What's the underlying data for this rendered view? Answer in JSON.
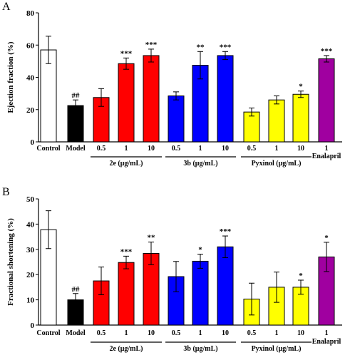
{
  "colors": {
    "Control": "#ffffff",
    "Model": "#000000",
    "2e": "#ff0000",
    "3b": "#0000ff",
    "Pyxinol": "#ffff00",
    "Enalapril": "#a000a0"
  },
  "chart_data": [
    {
      "type": "bar",
      "panel": "A",
      "ylabel": "Ejection fraction (%)",
      "ylim": [
        0,
        80
      ],
      "yticks": [
        "0",
        "20",
        "40",
        "60",
        "80"
      ],
      "categories": [
        "Control",
        "Model",
        "0.5",
        "1",
        "10",
        "0.5",
        "1",
        "10",
        "0.5",
        "1",
        "10",
        "1"
      ],
      "group_of": [
        "Control",
        "Model",
        "2e",
        "2e",
        "2e",
        "3b",
        "3b",
        "3b",
        "Pyxinol",
        "Pyxinol",
        "Pyxinol",
        "Enalapril"
      ],
      "groups": [
        {
          "label": "2e (μg/mL)",
          "from": 2,
          "to": 4
        },
        {
          "label": "3b (μg/mL)",
          "from": 5,
          "to": 7
        },
        {
          "label": "Pyxinol (μg/mL)",
          "from": 8,
          "to": 10
        }
      ],
      "extra_label": {
        "index": 11,
        "text": "Enalapril"
      },
      "values": [
        57,
        22.5,
        27.5,
        48.5,
        53.5,
        28.5,
        47.5,
        53.5,
        18.5,
        26,
        29.5,
        51.5
      ],
      "errors": [
        8.5,
        3.5,
        5.5,
        3.5,
        4,
        2.5,
        8.5,
        2.5,
        2.5,
        2.5,
        2,
        2
      ],
      "annotations": [
        "",
        "##",
        "",
        "***",
        "***",
        "",
        "**",
        "***",
        "",
        "",
        "*",
        "***"
      ]
    },
    {
      "type": "bar",
      "panel": "B",
      "ylabel": "Fractional shortening (%)",
      "ylim": [
        0,
        50
      ],
      "yticks": [
        "0",
        "10",
        "20",
        "30",
        "40",
        "50"
      ],
      "categories": [
        "Control",
        "Model",
        "0.5",
        "1",
        "10",
        "0.5",
        "1",
        "10",
        "0.5",
        "1",
        "10",
        "1"
      ],
      "group_of": [
        "Control",
        "Model",
        "2e",
        "2e",
        "2e",
        "3b",
        "3b",
        "3b",
        "Pyxinol",
        "Pyxinol",
        "Pyxinol",
        "Enalapril"
      ],
      "groups": [
        {
          "label": "2e (μg/mL)",
          "from": 2,
          "to": 4
        },
        {
          "label": "3b (μg/mL)",
          "from": 5,
          "to": 7
        },
        {
          "label": "Pyxinol (μg/mL)",
          "from": 8,
          "to": 10
        }
      ],
      "extra_label": {
        "index": 11,
        "text": "Enalapril"
      },
      "values": [
        37.8,
        10,
        17.5,
        24.8,
        28.4,
        19.2,
        25.3,
        31,
        10.3,
        15,
        15,
        27
      ],
      "errors": [
        7.5,
        2.5,
        5.5,
        2.5,
        4.5,
        6,
        2.8,
        4.3,
        6.3,
        6,
        2.8,
        5.8
      ],
      "annotations": [
        "",
        "##",
        "",
        "***",
        "**",
        "",
        "*",
        "***",
        "",
        "",
        "*",
        "*"
      ]
    }
  ]
}
